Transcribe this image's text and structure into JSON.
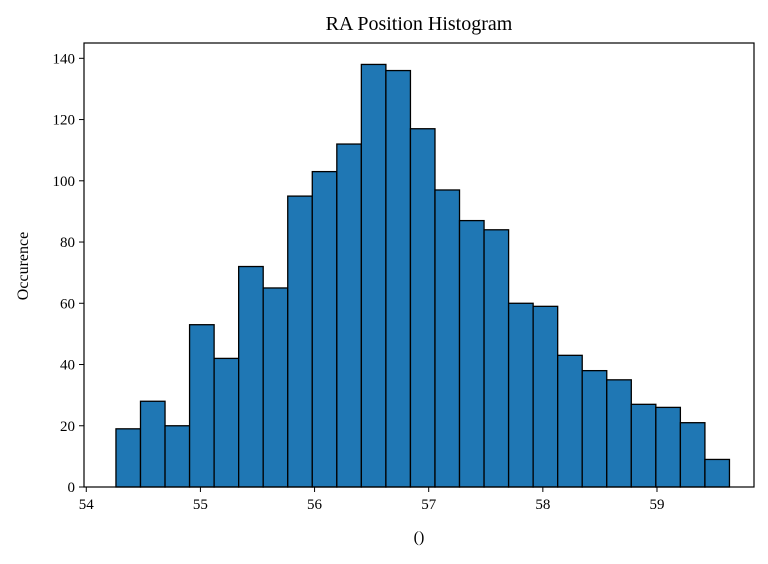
{
  "chart_data": {
    "type": "bar",
    "title": "RA Position Histogram",
    "xlabel": "()",
    "ylabel": "Occurence",
    "xlim": [
      53.98,
      59.85
    ],
    "ylim": [
      0,
      145
    ],
    "x_ticks": [
      54,
      55,
      56,
      57,
      58,
      59
    ],
    "x_tick_labels": [
      "54",
      "55",
      "56",
      "57",
      "58",
      "59"
    ],
    "y_ticks": [
      0,
      20,
      40,
      60,
      80,
      100,
      120,
      140
    ],
    "y_tick_labels": [
      "0",
      "20",
      "40",
      "60",
      "80",
      "100",
      "120",
      "140"
    ],
    "grid": false,
    "legend": "none",
    "bin_edges": [
      54.26,
      54.475,
      54.69,
      54.905,
      55.12,
      55.335,
      55.55,
      55.765,
      55.98,
      56.195,
      56.41,
      56.625,
      56.84,
      57.055,
      57.27,
      57.485,
      57.7,
      57.915,
      58.13,
      58.345,
      58.56,
      58.775,
      58.99,
      59.205,
      59.42,
      59.635
    ],
    "values": [
      19,
      28,
      20,
      53,
      42,
      72,
      65,
      95,
      103,
      112,
      138,
      136,
      117,
      97,
      87,
      84,
      60,
      59,
      43,
      38,
      35,
      27,
      26,
      21,
      9
    ],
    "colors": {
      "bar_fill": "#1f77b4",
      "bar_edge": "#000000",
      "axes": "#000000"
    }
  }
}
